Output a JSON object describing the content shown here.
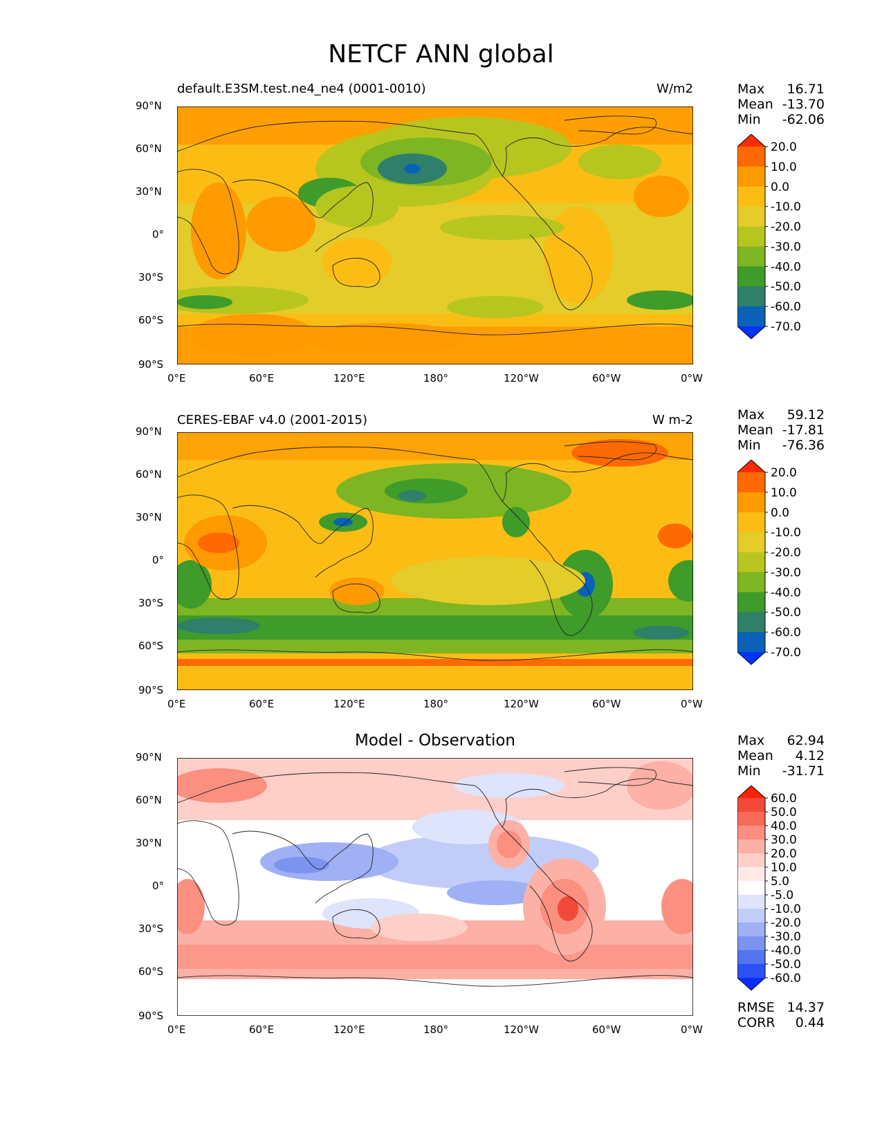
{
  "title": "NETCF ANN global",
  "x_ticks": [
    "0°E",
    "60°E",
    "120°E",
    "180°",
    "120°W",
    "60°W",
    "0°W"
  ],
  "y_ticks": [
    "90°N",
    "60°N",
    "30°N",
    "0°",
    "30°S",
    "60°S",
    "90°S"
  ],
  "panels": [
    {
      "left_label": "default.E3SM.test.ne4_ne4 (0001-0010)",
      "right_label": "W/m2",
      "center_label": "",
      "stats": [
        {
          "label": "Max",
          "value": "16.71"
        },
        {
          "label": "Mean",
          "value": "-13.70"
        },
        {
          "label": "Min",
          "value": "-62.06"
        }
      ],
      "colorbar_levels": [
        "20.0",
        "10.0",
        "0.0",
        "-10.0",
        "-20.0",
        "-30.0",
        "-40.0",
        "-50.0",
        "-60.0",
        "-70.0"
      ],
      "colorbar_colors": [
        "#ff2a00",
        "#ff6a00",
        "#ff9a00",
        "#fbbd14",
        "#e4cc2a",
        "#b7c51f",
        "#7db523",
        "#3f9b2a",
        "#2f7f6a",
        "#0a62b8",
        "#0033ff"
      ]
    },
    {
      "left_label": "CERES-EBAF v4.0 (2001-2015)",
      "right_label": "W m-2",
      "center_label": "",
      "stats": [
        {
          "label": "Max",
          "value": "59.12"
        },
        {
          "label": "Mean",
          "value": "-17.81"
        },
        {
          "label": "Min",
          "value": "-76.36"
        }
      ],
      "colorbar_levels": [
        "20.0",
        "10.0",
        "0.0",
        "-10.0",
        "-20.0",
        "-30.0",
        "-40.0",
        "-50.0",
        "-60.0",
        "-70.0"
      ],
      "colorbar_colors": [
        "#ff2a00",
        "#ff6a00",
        "#ff9a00",
        "#fbbd14",
        "#e4cc2a",
        "#b7c51f",
        "#7db523",
        "#3f9b2a",
        "#2f7f6a",
        "#0a62b8",
        "#0033ff"
      ]
    },
    {
      "left_label": "",
      "right_label": "",
      "center_label": "Model - Observation",
      "stats": [
        {
          "label": "Max",
          "value": "62.94"
        },
        {
          "label": "Mean",
          "value": "4.12"
        },
        {
          "label": "Min",
          "value": "-31.71"
        }
      ],
      "bottom_stats": [
        {
          "label": "RMSE",
          "value": "14.37"
        },
        {
          "label": "CORR",
          "value": "0.44"
        }
      ],
      "colorbar_levels": [
        "60.0",
        "50.0",
        "40.0",
        "30.0",
        "20.0",
        "10.0",
        "5.0",
        "-5.0",
        "-10.0",
        "-20.0",
        "-30.0",
        "-40.0",
        "-50.0",
        "-60.0"
      ],
      "colorbar_colors": [
        "#ff2200",
        "#f24a3a",
        "#f86a58",
        "#fb8f80",
        "#fcb0a6",
        "#fdcfc8",
        "#ffeae6",
        "#ffffff",
        "#dde4fb",
        "#c1cdf8",
        "#9fb1f4",
        "#7c93f0",
        "#5473ee",
        "#2c51f3",
        "#0a2dff"
      ]
    }
  ],
  "chart_data": {
    "type": "heatmap",
    "title": "NETCF ANN global",
    "x_range": [
      0,
      360
    ],
    "y_range": [
      -90,
      90
    ],
    "panels": [
      {
        "name": "default.E3SM.test.ne4_ne4 (0001-0010)",
        "units": "W/m2",
        "max": 16.71,
        "mean": -13.7,
        "min": -62.06
      },
      {
        "name": "CERES-EBAF v4.0 (2001-2015)",
        "units": "W m-2",
        "max": 59.12,
        "mean": -17.81,
        "min": -76.36
      },
      {
        "name": "Model - Observation",
        "max": 62.94,
        "mean": 4.12,
        "min": -31.71,
        "rmse": 14.37,
        "corr": 0.44
      }
    ]
  }
}
